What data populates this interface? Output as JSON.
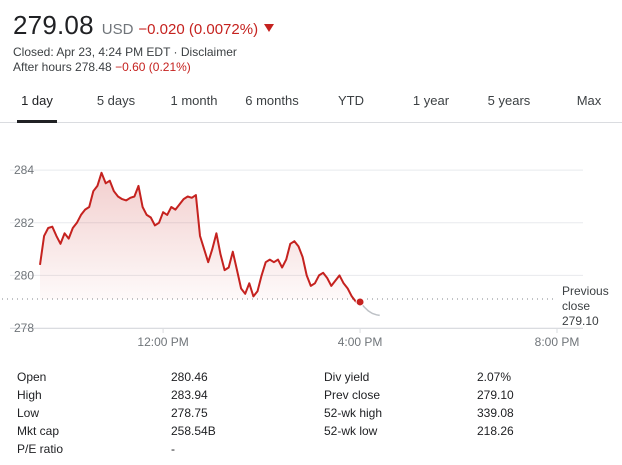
{
  "quote": {
    "price": "279.08",
    "currency": "USD",
    "change": "−0.020 (0.0072%)",
    "closed_line": "Closed: Apr 23, 4:24 PM EDT ·",
    "disclaimer": "Disclaimer",
    "after_hours_label": "After hours 278.48",
    "after_hours_change": "−0.60 (0.21%)"
  },
  "tabs": [
    "1 day",
    "5 days",
    "1 month",
    "6 months",
    "YTD",
    "1 year",
    "5 years",
    "Max"
  ],
  "active_tab": "1 day",
  "chart_labels": {
    "y_ticks": [
      "284",
      "282",
      "280",
      "278"
    ],
    "x_ticks": [
      "12:00 PM",
      "4:00 PM",
      "8:00 PM"
    ],
    "previous_close_line1": "Previous",
    "previous_close_line2": "close",
    "previous_close_value": "279.10"
  },
  "chart_data": {
    "type": "line",
    "ylim": [
      278,
      284.5
    ],
    "y_ticks": [
      284,
      282,
      280,
      278
    ],
    "x_ticks": [
      "12:00 PM",
      "4:00 PM",
      "8:00 PM"
    ],
    "previous_close": 279.1,
    "line_color": "#c5221f",
    "after_hours_color": "#bdc1c6",
    "series": [
      {
        "segment": "regular",
        "x": [
          "09:30",
          "09:35",
          "09:40",
          "09:45",
          "09:50",
          "09:55",
          "10:00",
          "10:05",
          "10:10",
          "10:15",
          "10:20",
          "10:25",
          "10:30",
          "10:35",
          "10:40",
          "10:45",
          "10:50",
          "10:55",
          "11:00",
          "11:05",
          "11:10",
          "11:15",
          "11:20",
          "11:25",
          "11:30",
          "11:35",
          "11:40",
          "11:45",
          "11:50",
          "11:55",
          "12:00",
          "12:05",
          "12:10",
          "12:15",
          "12:20",
          "12:25",
          "12:30",
          "12:35",
          "12:40",
          "12:45",
          "12:50",
          "12:55",
          "13:00",
          "13:05",
          "13:10",
          "13:15",
          "13:20",
          "13:25",
          "13:30",
          "13:35",
          "13:40",
          "13:45",
          "13:50",
          "13:55",
          "14:00",
          "14:05",
          "14:10",
          "14:15",
          "14:20",
          "14:25",
          "14:30",
          "14:35",
          "14:40",
          "14:45",
          "14:50",
          "14:55",
          "15:00",
          "15:05",
          "15:10",
          "15:15",
          "15:20",
          "15:25",
          "15:30",
          "15:35",
          "15:40",
          "15:45",
          "15:50",
          "15:55",
          "16:00"
        ],
        "y": [
          280.4,
          281.5,
          281.8,
          281.85,
          281.5,
          281.2,
          281.6,
          281.4,
          281.8,
          282.0,
          282.3,
          282.5,
          282.6,
          283.2,
          283.4,
          283.9,
          283.5,
          283.6,
          283.2,
          283.0,
          282.9,
          282.85,
          282.95,
          283.0,
          283.4,
          282.6,
          282.3,
          282.2,
          281.9,
          282.0,
          282.4,
          282.3,
          282.6,
          282.5,
          282.7,
          282.9,
          283.0,
          282.95,
          283.05,
          281.5,
          281.0,
          280.5,
          281.0,
          281.6,
          280.8,
          280.2,
          280.3,
          280.9,
          280.2,
          279.5,
          279.3,
          279.7,
          279.2,
          279.4,
          280.0,
          280.5,
          280.6,
          280.5,
          280.6,
          280.3,
          280.6,
          281.2,
          281.3,
          281.1,
          280.7,
          280.0,
          279.6,
          279.7,
          280.0,
          280.1,
          279.9,
          279.6,
          279.8,
          280.0,
          279.7,
          279.5,
          279.2,
          279.0,
          278.99
        ]
      },
      {
        "segment": "after_hours",
        "x": [
          "16:00",
          "16:05",
          "16:10",
          "16:15",
          "16:20",
          "16:24"
        ],
        "y": [
          278.99,
          278.8,
          278.65,
          278.55,
          278.5,
          278.48
        ]
      }
    ]
  },
  "stats": {
    "left": [
      {
        "label": "Open",
        "value": "280.46"
      },
      {
        "label": "High",
        "value": "283.94"
      },
      {
        "label": "Low",
        "value": "278.75"
      },
      {
        "label": "Mkt cap",
        "value": "258.54B"
      },
      {
        "label": "P/E ratio",
        "value": "-"
      }
    ],
    "right": [
      {
        "label": "Div yield",
        "value": "2.07%"
      },
      {
        "label": "Prev close",
        "value": "279.10"
      },
      {
        "label": "52-wk high",
        "value": "339.08"
      },
      {
        "label": "52-wk low",
        "value": "218.26"
      }
    ]
  }
}
